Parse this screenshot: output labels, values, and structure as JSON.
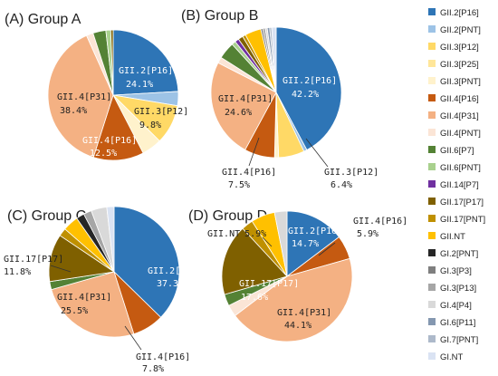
{
  "chart_data": {
    "type": "pie",
    "legend_position": "right",
    "legend": [
      {
        "label": "GII.2[P16]",
        "color": "#2e75b6"
      },
      {
        "label": "GII.2[PNT]",
        "color": "#9dc3e6"
      },
      {
        "label": "GII.3[P12]",
        "color": "#ffd966"
      },
      {
        "label": "GII.3[P25]",
        "color": "#ffe699"
      },
      {
        "label": "GII.3[PNT]",
        "color": "#fff2cc"
      },
      {
        "label": "GII.4[P16]",
        "color": "#c55a11"
      },
      {
        "label": "GII.4[P31]",
        "color": "#f4b183"
      },
      {
        "label": "GII.4[PNT]",
        "color": "#fbe5d6"
      },
      {
        "label": "GII.6[P7]",
        "color": "#548235"
      },
      {
        "label": "GII.6[PNT]",
        "color": "#a9d18e"
      },
      {
        "label": "GII.14[P7]",
        "color": "#7030a0"
      },
      {
        "label": "GII.17[P17]",
        "color": "#7f6000"
      },
      {
        "label": "GII.17[PNT]",
        "color": "#bf9000"
      },
      {
        "label": "GII.NT",
        "color": "#ffc000"
      },
      {
        "label": "GI.2[PNT]",
        "color": "#262626"
      },
      {
        "label": "GI.3[P3]",
        "color": "#7f7f7f"
      },
      {
        "label": "GI.3[P13]",
        "color": "#a6a6a6"
      },
      {
        "label": "GI.4[P4]",
        "color": "#d9d9d9"
      },
      {
        "label": "GI.6[P11]",
        "color": "#8497b0"
      },
      {
        "label": "GI.7[PNT]",
        "color": "#adb9ca"
      },
      {
        "label": "GI.NT",
        "color": "#dae3f3"
      }
    ],
    "panels": [
      {
        "title": "(A) Group A",
        "slices": [
          {
            "label": "GII.2[P16]",
            "value": 24.1
          },
          {
            "label": "GII.2[PNT]",
            "value": 3.5
          },
          {
            "label": "GII.3[P12]",
            "value": 9.8
          },
          {
            "label": "GII.3[PNT]",
            "value": 5.0
          },
          {
            "label": "GII.4[P16]",
            "value": 12.5
          },
          {
            "label": "GII.4[P31]",
            "value": 38.4
          },
          {
            "label": "GII.4[PNT]",
            "value": 1.7
          },
          {
            "label": "GII.6[P7]",
            "value": 3.2
          },
          {
            "label": "GII.6[PNT]",
            "value": 1.2
          },
          {
            "label": "GII.17[P17]",
            "value": 0.6
          }
        ],
        "annotations": [
          {
            "name": "GII.2[P16]",
            "pct": "24.1%"
          },
          {
            "name": "GII.3[P12]",
            "pct": "9.8%"
          },
          {
            "name": "GII.4[P16]",
            "pct": "12.5%"
          },
          {
            "name": "GII.4[P31]",
            "pct": "38.4%"
          }
        ]
      },
      {
        "title": "(B) Group B",
        "slices": [
          {
            "label": "GII.2[P16]",
            "value": 42.2
          },
          {
            "label": "GII.2[PNT]",
            "value": 0.8
          },
          {
            "label": "GII.3[P12]",
            "value": 6.4
          },
          {
            "label": "GII.3[PNT]",
            "value": 1.0
          },
          {
            "label": "GII.4[P16]",
            "value": 7.5
          },
          {
            "label": "GII.4[P31]",
            "value": 24.6
          },
          {
            "label": "GII.4[PNT]",
            "value": 1.5
          },
          {
            "label": "GII.6[P7]",
            "value": 4.2
          },
          {
            "label": "GII.6[PNT]",
            "value": 1.0
          },
          {
            "label": "GII.14[P7]",
            "value": 1.0
          },
          {
            "label": "GII.17[P17]",
            "value": 1.2
          },
          {
            "label": "GII.17[PNT]",
            "value": 0.8
          },
          {
            "label": "GII.NT",
            "value": 4.0
          },
          {
            "label": "GI.3[P3]",
            "value": 0.5
          },
          {
            "label": "GI.3[P13]",
            "value": 0.6
          },
          {
            "label": "GI.4[P4]",
            "value": 0.5
          },
          {
            "label": "GI.6[P11]",
            "value": 0.6
          },
          {
            "label": "GI.7[PNT]",
            "value": 0.5
          },
          {
            "label": "GI.NT",
            "value": 1.1
          }
        ],
        "annotations": [
          {
            "name": "GII.2[P16]",
            "pct": "42.2%"
          },
          {
            "name": "GII.3[P12]",
            "pct": "6.4%"
          },
          {
            "name": "GII.4[P16]",
            "pct": "7.5%"
          },
          {
            "name": "GII.4[P31]",
            "pct": "24.6%"
          }
        ]
      },
      {
        "title": "(C) Group C",
        "slices": [
          {
            "label": "GII.2[P16]",
            "value": 37.3
          },
          {
            "label": "GII.4[P16]",
            "value": 7.8
          },
          {
            "label": "GII.4[P31]",
            "value": 25.5
          },
          {
            "label": "GII.6[P7]",
            "value": 2.0
          },
          {
            "label": "GII.17[P17]",
            "value": 11.8
          },
          {
            "label": "GII.17[PNT]",
            "value": 2.0
          },
          {
            "label": "GII.NT",
            "value": 3.9
          },
          {
            "label": "GI.2[PNT]",
            "value": 2.0
          },
          {
            "label": "GI.3[P13]",
            "value": 2.0
          },
          {
            "label": "GI.4[P4]",
            "value": 3.9
          },
          {
            "label": "GI.NT",
            "value": 1.8
          }
        ],
        "annotations": [
          {
            "name": "GII.2[P16]",
            "pct": "37.3%"
          },
          {
            "name": "GII.4[P16]",
            "pct": "7.8%"
          },
          {
            "name": "GII.4[P31]",
            "pct": "25.5%"
          },
          {
            "name": "GII.17[P17]",
            "pct": "11.8%"
          }
        ]
      },
      {
        "title": "(D) Group D",
        "slices": [
          {
            "label": "GII.2[P16]",
            "value": 14.7
          },
          {
            "label": "GII.4[P16]",
            "value": 5.9
          },
          {
            "label": "GII.4[P31]",
            "value": 44.1
          },
          {
            "label": "GII.4[PNT]",
            "value": 2.9
          },
          {
            "label": "GII.6[P7]",
            "value": 2.9
          },
          {
            "label": "GII.17[P17]",
            "value": 17.6
          },
          {
            "label": "GII.17[PNT]",
            "value": 2.9
          },
          {
            "label": "GII.NT",
            "value": 5.9
          },
          {
            "label": "GI.4[P4]",
            "value": 3.1
          }
        ],
        "annotations": [
          {
            "name": "GII.2[P16]",
            "pct": "14.7%"
          },
          {
            "name": "GII.4[P16]",
            "pct": "5.9%"
          },
          {
            "name": "GII.4[P31]",
            "pct": "44.1%"
          },
          {
            "name": "GII.17[P17]",
            "pct": "17.6%"
          },
          {
            "name": "GII.NT",
            "pct": "5.9%"
          }
        ]
      }
    ]
  }
}
